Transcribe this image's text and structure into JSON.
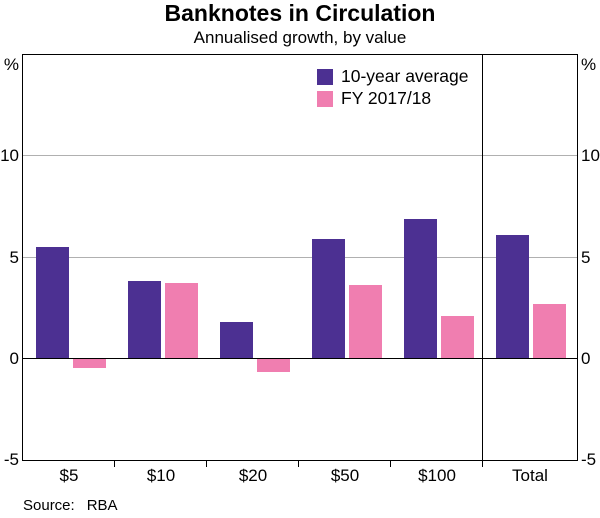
{
  "title": "Banknotes in Circulation",
  "subtitle": "Annualised growth, by value",
  "source": {
    "label": "Source:",
    "value": "RBA"
  },
  "chart_data": {
    "type": "bar",
    "unit": "%",
    "categories": [
      "$5",
      "$10",
      "$20",
      "$50",
      "$100",
      "Total"
    ],
    "series": [
      {
        "name": "10-year average",
        "color": "#4C3092",
        "values": [
          5.5,
          3.8,
          1.8,
          5.9,
          6.9,
          6.1
        ]
      },
      {
        "name": "FY 2017/18",
        "color": "#F07EB0",
        "values": [
          -0.5,
          3.7,
          -0.7,
          3.6,
          2.1,
          2.7
        ]
      }
    ],
    "ylim": [
      -5,
      15
    ],
    "yticks": [
      10,
      5,
      0,
      -5
    ],
    "grid_yticks": [
      10,
      5
    ],
    "gridline_color": "#b0b0b0",
    "zero_line": true,
    "separator_before_category": "Total",
    "legend_position": "top-center",
    "axis_unit_left": "%",
    "axis_unit_right": "%"
  }
}
